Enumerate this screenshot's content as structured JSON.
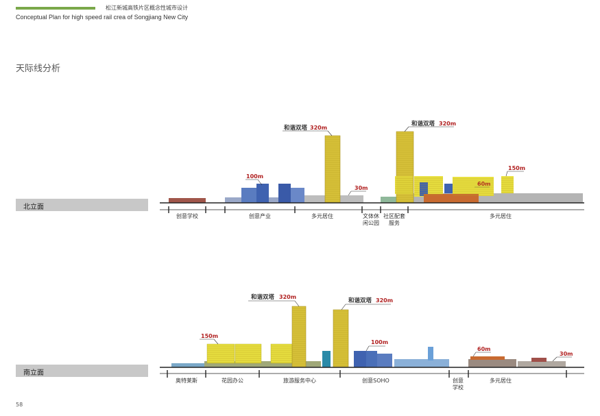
{
  "header": {
    "title_cn": "松江新城高铁片区概念性城市设计",
    "title_en": "Conceptual Plan for high speed rail  crea of Songjiang New City",
    "accent_color": "#7aa84a"
  },
  "section_title": "天际线分析",
  "page_number": "58",
  "elevations": {
    "north": {
      "label": "北立面",
      "zones": [
        "创意学校",
        "创意产业",
        "多元居住",
        "文体休\n闲公园",
        "社区配套\n服务",
        "多元居住"
      ],
      "callouts": [
        {
          "name": "",
          "height": "100m"
        },
        {
          "name": "和谐双塔",
          "height": "320m"
        },
        {
          "name": "",
          "height": "30m"
        },
        {
          "name": "和谐双塔",
          "height": "320m"
        },
        {
          "name": "",
          "height": "150m"
        },
        {
          "name": "",
          "height": "60m"
        }
      ]
    },
    "south": {
      "label": "南立面",
      "zones": [
        "奥特莱斯",
        "花园办公",
        "旅游服务中心",
        "创意SOHO",
        "创意\n学校",
        "多元居住"
      ],
      "callouts": [
        {
          "name": "",
          "height": "150m"
        },
        {
          "name": "和谐双塔",
          "height": "320m"
        },
        {
          "name": "和谐双塔",
          "height": "320m"
        },
        {
          "name": "",
          "height": "100m"
        },
        {
          "name": "",
          "height": "60m"
        },
        {
          "name": "",
          "height": "30m"
        }
      ]
    }
  },
  "colors": {
    "tower": "#d8c23a",
    "yellow_block": "#e8e040",
    "blue_block": "#4a6fb8",
    "residential": "#b8b8b8",
    "orange_block": "#c86a30",
    "callout_height": "#b02020"
  }
}
